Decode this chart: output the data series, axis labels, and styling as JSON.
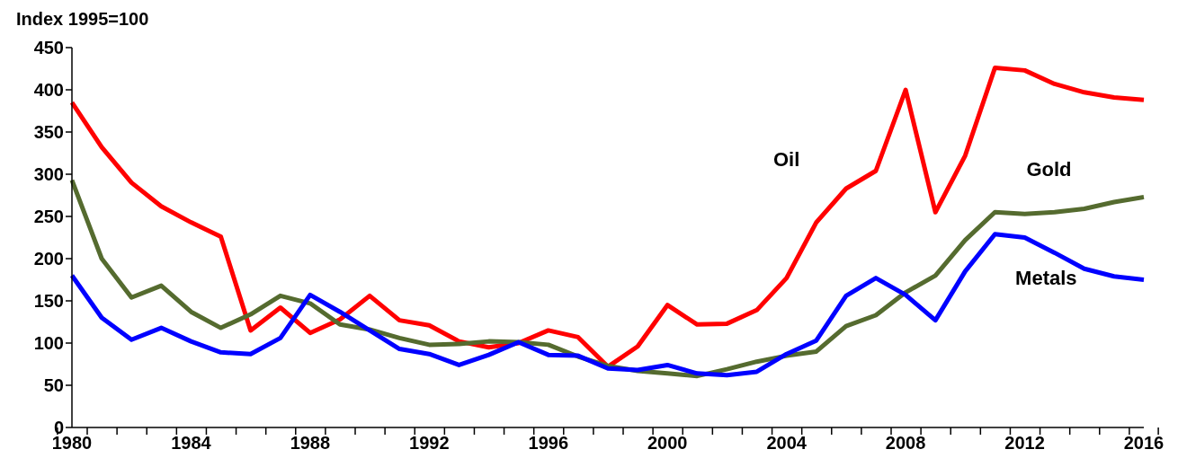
{
  "chart_data": {
    "type": "line",
    "ylabel": "Index 1995=100",
    "categories": [
      "1980",
      null,
      null,
      null,
      "1984",
      null,
      null,
      null,
      "1988",
      null,
      null,
      null,
      "1992",
      null,
      null,
      null,
      "1996",
      null,
      null,
      null,
      "2000",
      null,
      null,
      null,
      "2004",
      null,
      null,
      null,
      "2008",
      null,
      null,
      null,
      "2012",
      null,
      null,
      null,
      "2016"
    ],
    "series": [
      {
        "name": "Oil",
        "color": "#ff0000",
        "values": [
          385,
          332,
          290,
          262,
          243,
          226,
          115,
          142,
          112,
          128,
          156,
          127,
          121,
          102,
          95,
          100,
          115,
          107,
          72,
          96,
          145,
          122,
          123,
          139,
          177,
          243,
          283,
          304,
          400,
          255,
          322,
          426,
          423,
          407,
          397,
          391,
          388
        ]
      },
      {
        "name": "Gold",
        "color": "#556b2f",
        "values": [
          293,
          200,
          154,
          168,
          137,
          118,
          134,
          156,
          147,
          122,
          116,
          106,
          98,
          99,
          102,
          101,
          98,
          84,
          73,
          67,
          64,
          61,
          69,
          78,
          85,
          90,
          120,
          133,
          160,
          180,
          222,
          255,
          253,
          255,
          259,
          267,
          273
        ]
      },
      {
        "name": "Metals",
        "color": "#0000ff",
        "values": [
          180,
          130,
          104,
          118,
          102,
          89,
          87,
          106,
          157,
          137,
          115,
          93,
          87,
          74,
          86,
          101,
          86,
          85,
          70,
          68,
          74,
          64,
          62,
          66,
          87,
          103,
          156,
          177,
          157,
          127,
          185,
          229,
          225,
          207,
          188,
          179,
          175
        ]
      }
    ],
    "ylim": [
      0,
      450
    ],
    "yticks": [
      0,
      50,
      100,
      150,
      200,
      250,
      300,
      350,
      400,
      450
    ],
    "grid": false,
    "legend": false,
    "marker": "none",
    "line_style": "solid"
  }
}
